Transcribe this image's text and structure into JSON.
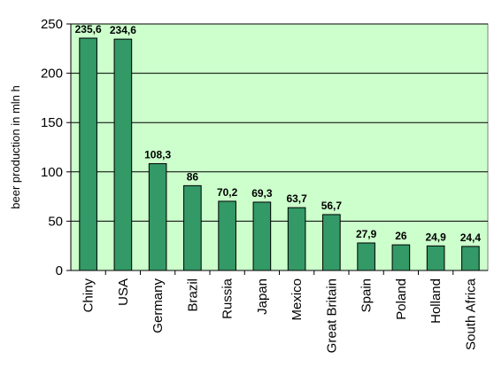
{
  "chart_data": {
    "type": "bar",
    "title": "",
    "xlabel": "",
    "ylabel": "beer production in mln h",
    "ylim": [
      0,
      250
    ],
    "yticks": [
      0,
      50,
      100,
      150,
      200,
      250
    ],
    "grid": true,
    "legend": "none",
    "categories": [
      "Chiny",
      "USA",
      "Germany",
      "Brazil",
      "Russia",
      "Japan",
      "Mexico",
      "Great Britain",
      "Spain",
      "Poland",
      "Holland",
      "South Africa"
    ],
    "values": [
      235.6,
      234.6,
      108.3,
      86,
      70.2,
      69.3,
      63.7,
      56.7,
      27.9,
      26,
      24.9,
      24.4
    ],
    "data_labels": [
      "235,6",
      "234,6",
      "108,3",
      "86",
      "70,2",
      "69,3",
      "63,7",
      "56,7",
      "27,9",
      "26",
      "24,9",
      "24,4"
    ],
    "colors": {
      "bar": "#339966",
      "plot_bg": "#CCFFCC"
    }
  }
}
